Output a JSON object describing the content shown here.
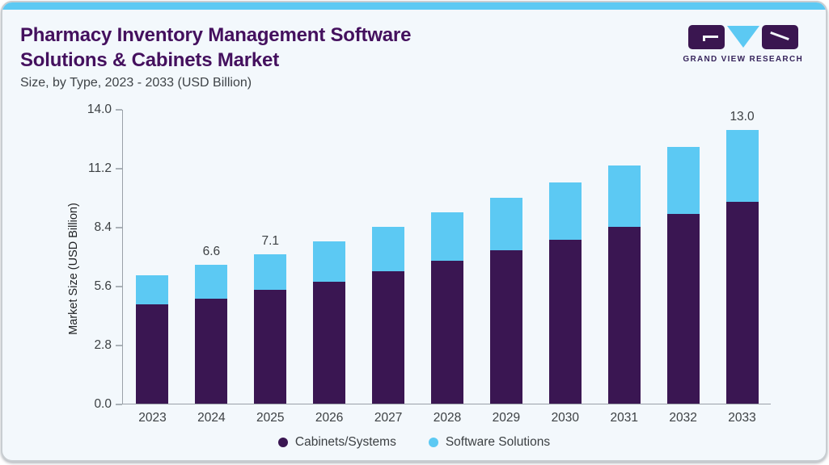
{
  "header": {
    "title_line1": "Pharmacy Inventory Management Software",
    "title_line2": "Solutions & Cabinets Market",
    "subtitle": "Size, by Type, 2023 - 2033 (USD Billion)"
  },
  "logo": {
    "brand_text": "GRAND VIEW RESEARCH"
  },
  "colors": {
    "card_background": "#F3F8FC",
    "top_accent_blue": "#5CC9F3",
    "title_purple": "#44105E",
    "cabinets_purple": "#3A1652",
    "software_blue": "#5CC9F3",
    "axis_line": "#9AA1A8",
    "axis_text": "#3C4043",
    "logo_block_purple": "#3A1650",
    "logo_text_purple": "#37255C"
  },
  "chart_data": {
    "type": "bar",
    "stacked": true,
    "title": "Pharmacy Inventory Management Software Solutions & Cabinets Market Size, by Type, 2023 - 2033 (USD Billion)",
    "xlabel": "",
    "ylabel": "Market Size (USD Billion)",
    "ylim": [
      0,
      14.0
    ],
    "yticks": [
      0.0,
      2.8,
      5.6,
      8.4,
      11.2,
      14.0
    ],
    "ytick_labels": [
      "0.0",
      "2.8",
      "5.6",
      "8.4",
      "11.2",
      "14.0"
    ],
    "grid": false,
    "legend_position": "bottom",
    "categories": [
      "2023",
      "2024",
      "2025",
      "2026",
      "2027",
      "2028",
      "2029",
      "2030",
      "2031",
      "2032",
      "2033"
    ],
    "series": [
      {
        "name": "Cabinets/Systems",
        "color": "#3A1652",
        "values": [
          4.7,
          5.0,
          5.4,
          5.8,
          6.3,
          6.8,
          7.3,
          7.8,
          8.4,
          9.0,
          9.6
        ]
      },
      {
        "name": "Software Solutions",
        "color": "#5CC9F3",
        "values": [
          1.4,
          1.6,
          1.7,
          1.9,
          2.1,
          2.3,
          2.5,
          2.7,
          2.9,
          3.2,
          3.4
        ]
      }
    ],
    "totals": [
      6.1,
      6.6,
      7.1,
      7.7,
      8.4,
      9.1,
      9.8,
      10.5,
      11.3,
      12.2,
      13.0
    ],
    "shown_total_labels": {
      "2024": "6.6",
      "2025": "7.1",
      "2033": "13.0"
    }
  }
}
